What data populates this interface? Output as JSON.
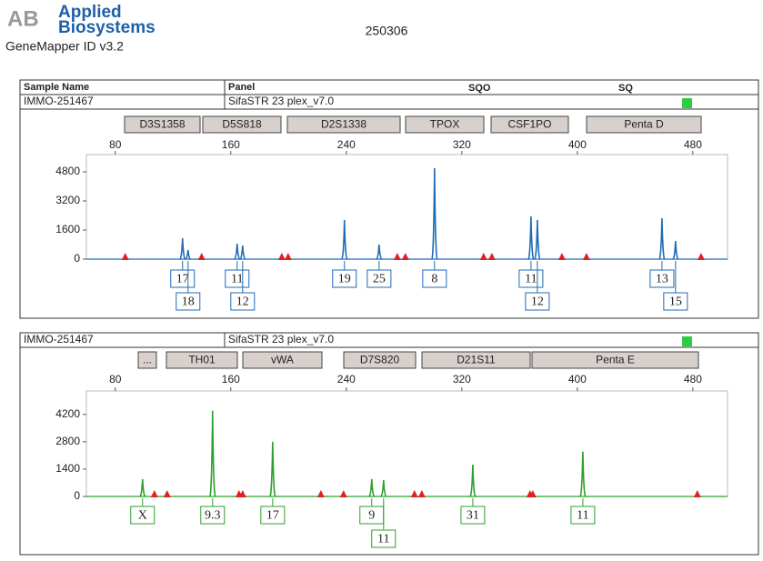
{
  "header": {
    "logo_mark": "AB",
    "logo_line1": "Applied",
    "logo_line2": "Biosystems",
    "run": "250306",
    "software": "GeneMapper ID v3.2"
  },
  "table_header": {
    "sample_name": "Sample Name",
    "panel": "Panel",
    "sqo": "SQO",
    "sq": "SQ"
  },
  "chart_data": [
    {
      "type": "electropherogram",
      "sample": "IMMO-251467",
      "panel": "SifaSTR 23 plex_v7.0",
      "color": "#1e6bb8",
      "markers": [
        "D3S1358",
        "D5S818",
        "D2S1338",
        "TPOX",
        "CSF1PO",
        "Penta D"
      ],
      "xlim": [
        60,
        504
      ],
      "xticks": [
        80,
        160,
        240,
        320,
        400,
        480
      ],
      "ylim": [
        0,
        5750
      ],
      "yticks": [
        0,
        1600,
        3200,
        4800
      ],
      "x": [
        126.6,
        130.4,
        164.4,
        168.2,
        238.7,
        262.7,
        301.1,
        367.9,
        372.3,
        458.6,
        468.0
      ],
      "values": [
        1150,
        500,
        850,
        750,
        2150,
        800,
        5000,
        2350,
        2150,
        2250,
        1000
      ],
      "alleles": [
        "17",
        "18",
        "11",
        "12",
        "19",
        "25",
        "8",
        "11",
        "12",
        "13",
        "15"
      ],
      "triangles": [
        86.9,
        139.8,
        195.3,
        199.7,
        275.3,
        280.9,
        335.1,
        340.8,
        389.3,
        406.3,
        485.7
      ]
    },
    {
      "type": "electropherogram",
      "sample": "IMMO-251467",
      "panel": "SifaSTR 23 plex_v7.0",
      "color": "#2ca02c",
      "markers": [
        "...",
        "TH01",
        "vWA",
        "D7S820",
        "D21S11",
        "Penta E"
      ],
      "xlim": [
        60,
        504
      ],
      "xticks": [
        80,
        160,
        240,
        320,
        400,
        480
      ],
      "ylim": [
        0,
        5400
      ],
      "yticks": [
        0,
        1400,
        2800,
        4200
      ],
      "x": [
        98.9,
        147.4,
        189.0,
        257.6,
        265.8,
        327.6,
        403.8
      ],
      "values": [
        890,
        4390,
        2800,
        890,
        840,
        1630,
        2290
      ],
      "alleles": [
        "X",
        "9.3",
        "17",
        "9",
        "11",
        "31",
        "11"
      ],
      "triangles": [
        107.1,
        115.9,
        165.7,
        168.2,
        222.4,
        238.1,
        287.2,
        292.3,
        367.2,
        369.1,
        483.1
      ]
    }
  ]
}
